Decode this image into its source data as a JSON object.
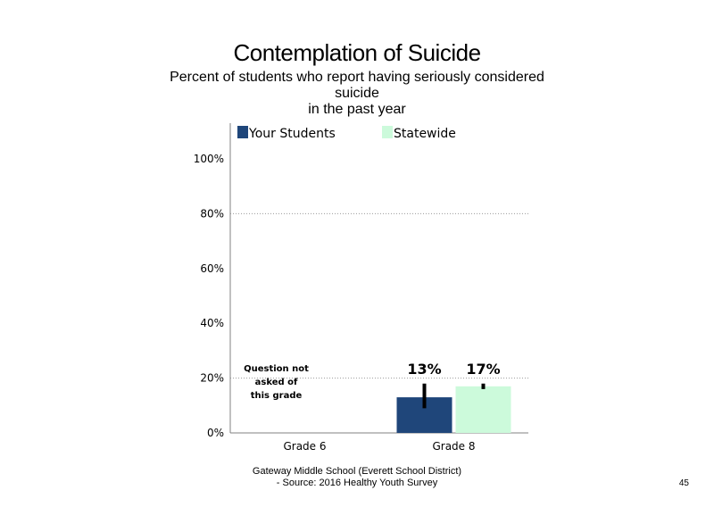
{
  "slide": {
    "title": "Contemplation of Suicide",
    "subtitle_lines": [
      "Percent of students who report having seriously considered",
      "suicide",
      "in the past year"
    ],
    "footer_lines": [
      "Gateway Middle School (Everett School District)",
      "- Source: 2016 Healthy Youth Survey"
    ],
    "page_number": "45"
  },
  "chart_data": {
    "type": "bar",
    "categories": [
      "Grade 6",
      "Grade 8"
    ],
    "series": [
      {
        "name": "Your Students",
        "color": "#1f467a",
        "values": [
          null,
          13
        ],
        "data_labels": [
          "",
          "13%"
        ],
        "error_bars": [
          null,
          [
            9,
            18
          ]
        ]
      },
      {
        "name": "Statewide",
        "color": "#ccfadb",
        "values": [
          null,
          17
        ],
        "data_labels": [
          "",
          "17%"
        ],
        "error_bars": [
          null,
          [
            16,
            18
          ]
        ]
      }
    ],
    "y_ticks": [
      "0%",
      "20%",
      "40%",
      "60%",
      "80%",
      "100%"
    ],
    "ylim": [
      0,
      100
    ],
    "gridlines": [
      20,
      80
    ],
    "legend_position": "top",
    "annotations": [
      {
        "category": "Grade 6",
        "lines": [
          "Question not",
          "asked of",
          "this grade"
        ]
      }
    ]
  }
}
